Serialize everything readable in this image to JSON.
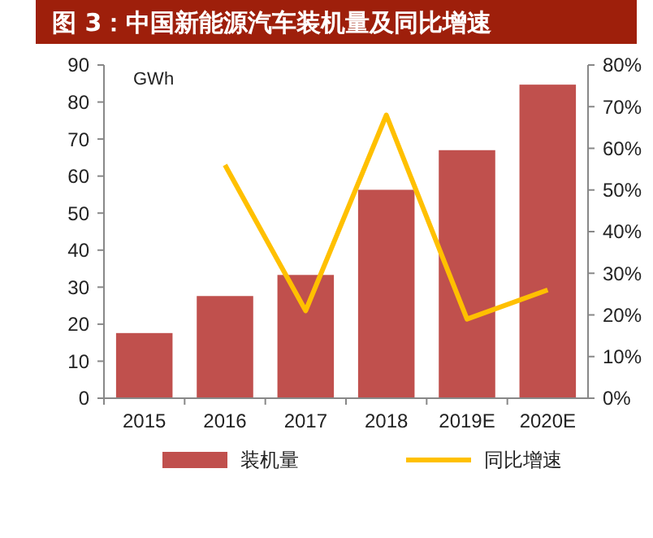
{
  "chart_data": {
    "type": "bar",
    "title": "图 3：中国新能源汽车装机量及同比增速",
    "ylabel": "GWh",
    "categories": [
      "2015",
      "2016",
      "2017",
      "2018",
      "2019E",
      "2020E"
    ],
    "series": [
      {
        "name": "装机量",
        "color": "#c0504d",
        "values": [
          17.6,
          27.6,
          33.3,
          56.3,
          67,
          84.7
        ]
      },
      {
        "name": "同比增速",
        "type": "line",
        "color": "#ffc000",
        "axis": "y2",
        "values": [
          null,
          56,
          21,
          68,
          19,
          26
        ]
      }
    ],
    "ylim": [
      0,
      90
    ],
    "yticks": [
      0,
      10,
      20,
      30,
      40,
      50,
      60,
      70,
      80,
      90
    ],
    "y2lim": [
      0,
      80
    ],
    "y2ticks": [
      {
        "value": 0,
        "label": "0%"
      },
      {
        "value": 10,
        "label": "10%"
      },
      {
        "value": 20,
        "label": "20%"
      },
      {
        "value": 30,
        "label": "30%"
      },
      {
        "value": 40,
        "label": "40%"
      },
      {
        "value": 50,
        "label": "50%"
      },
      {
        "value": 60,
        "label": "60%"
      },
      {
        "value": 70,
        "label": "70%"
      },
      {
        "value": 80,
        "label": "80%"
      }
    ],
    "legend": "bottom",
    "marker": "none",
    "line_style": "solid"
  }
}
